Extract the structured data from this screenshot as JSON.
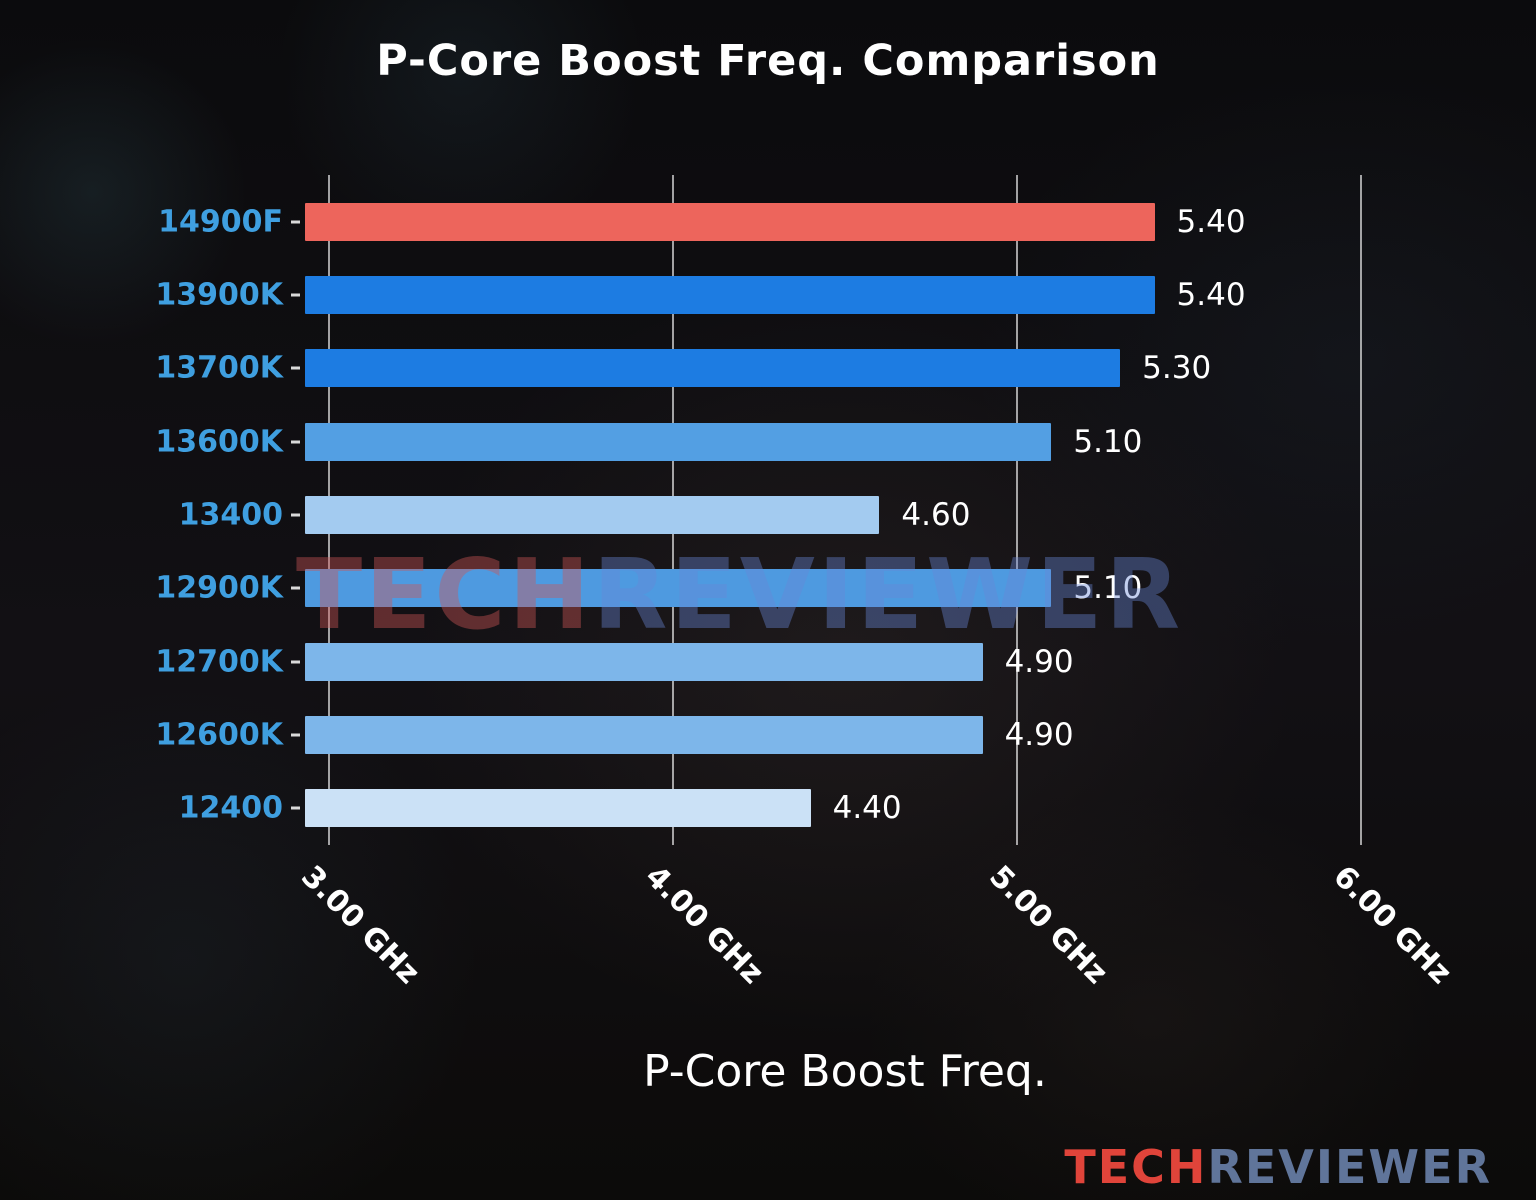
{
  "title": "P-Core Boost Freq. Comparison",
  "xlabel": "P-Core Boost Freq.",
  "watermark": {
    "part1": "TECH",
    "part2": "REVIEWER"
  },
  "logo": {
    "part1": "TECH",
    "part2": "REVIEWER"
  },
  "chart_data": {
    "type": "bar",
    "orientation": "horizontal",
    "title": "P-Core Boost Freq. Comparison",
    "xlabel": "P-Core Boost Freq.",
    "ylabel": "",
    "categories": [
      "14900F",
      "13900K",
      "13700K",
      "13600K",
      "13400",
      "12900K",
      "12700K",
      "12600K",
      "12400"
    ],
    "values": [
      5.4,
      5.4,
      5.3,
      5.1,
      4.6,
      5.1,
      4.9,
      4.9,
      4.4
    ],
    "value_labels": [
      "5.40",
      "5.40",
      "5.30",
      "5.10",
      "4.60",
      "5.10",
      "4.90",
      "4.90",
      "4.40"
    ],
    "bar_colors": [
      "#ed655c",
      "#1d7ce2",
      "#1d7ce2",
      "#539fe3",
      "#a3cbf0",
      "#4e9ae0",
      "#7db6ea",
      "#7db6ea",
      "#cbe1f6"
    ],
    "unit": "GHz",
    "x_ticks": [
      {
        "value": 3.0,
        "label": "3.00 GHz"
      },
      {
        "value": 4.0,
        "label": "4.00 GHz"
      },
      {
        "value": 5.0,
        "label": "5.00 GHz"
      },
      {
        "value": 6.0,
        "label": "6.00 GHz"
      }
    ],
    "xlim": [
      2.93,
      6.07
    ],
    "grid": true,
    "legend": "none",
    "highlight_category": "14900F",
    "category_label_color": "#3f9fe0",
    "value_label_color": "#ffffff"
  }
}
